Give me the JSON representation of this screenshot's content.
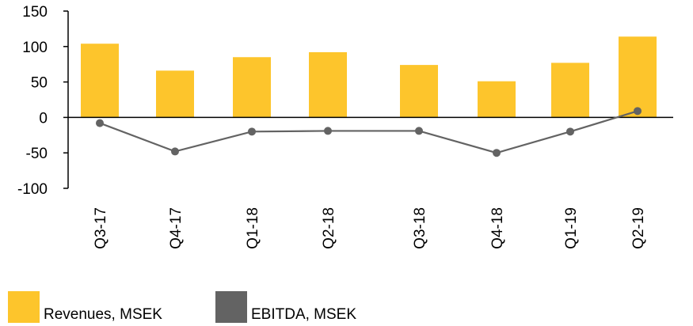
{
  "chart_data": {
    "type": "bar",
    "categories": [
      "Q3-17",
      "Q4-17",
      "Q1-18",
      "Q2-18",
      "Q3-18",
      "Q4-18",
      "Q1-19",
      "Q2-19"
    ],
    "series": [
      {
        "name": "Revenues, MSEK",
        "type": "bar",
        "color": "#FDC52C",
        "values": [
          104,
          66,
          85,
          92,
          74,
          51,
          77,
          114
        ]
      },
      {
        "name": "EBITDA, MSEK",
        "type": "line",
        "color": "#636363",
        "values": [
          -8,
          -48,
          -20,
          -19,
          -19,
          -50,
          -20,
          9
        ]
      }
    ],
    "ylim": [
      -100,
      150
    ],
    "yticks": [
      150,
      100,
      50,
      0,
      -50,
      -100
    ],
    "grid": false,
    "legend": "bottom-left"
  }
}
